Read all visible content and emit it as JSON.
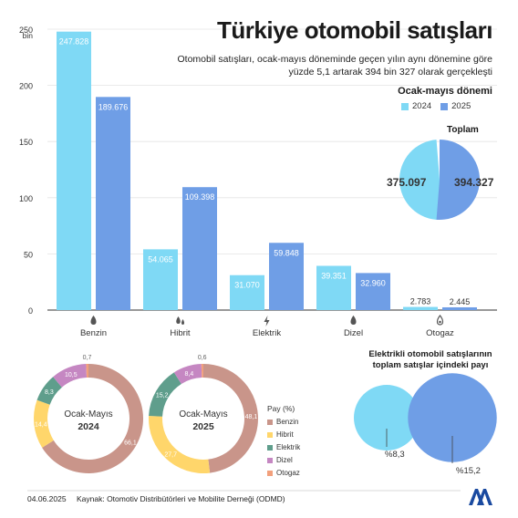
{
  "header": {
    "title": "Türkiye otomobil satışları",
    "subtitle_line1": "Otomobil satışları, ocak-mayıs döneminde geçen yılın aynı dönemine göre",
    "subtitle_line2": "yüzde 5,1 artarak 394 bin 327 olarak gerçekleşti",
    "period_label": "Ocak-mayıs dönemi"
  },
  "legend": {
    "series_2024": "2024",
    "series_2025": "2025"
  },
  "colors": {
    "c2024": "#7fd9f5",
    "c2025": "#6f9ee6",
    "benzin": "#c9958a",
    "hibrit": "#ffd66b",
    "elektrik": "#5f9e8c",
    "dizel": "#c587c2",
    "otogaz": "#f2a07c",
    "text": "#1a1a1a"
  },
  "totals": {
    "label": "Toplam",
    "v2024": "375.097",
    "v2025": "394.327"
  },
  "ev_share": {
    "title_line1": "Elektrikli otomobil satışlarının",
    "title_line2": "toplam satışlar içindeki payı",
    "v2024": "%8,3",
    "v2025": "%15,2"
  },
  "donuts": {
    "label_2024_line1": "Ocak-Mayıs",
    "label_2024_line2": "2024",
    "label_2025_line1": "Ocak-Mayıs",
    "label_2025_line2": "2025",
    "pay_title": "Pay (%)",
    "items": [
      "Benzin",
      "Hibrit",
      "Elektrik",
      "Dizel",
      "Otogaz"
    ]
  },
  "footer": {
    "date": "04.06.2025",
    "source": "Kaynak: Otomotiv Distribütörleri ve Mobilite Derneği (ODMD)"
  },
  "chart_data": [
    {
      "type": "bar",
      "y_unit": "bin",
      "ylim": [
        0,
        250
      ],
      "yticks": [
        "0",
        "50",
        "100",
        "150",
        "200",
        "250"
      ],
      "categories": [
        "Benzin",
        "Hibrit",
        "Elektrik",
        "Dizel",
        "Otogaz"
      ],
      "icons": [
        "fuel-drop-icon",
        "hybrid-drops-icon",
        "lightning-icon",
        "fuel-drop-icon",
        "gas-drop-icon"
      ],
      "series": [
        {
          "name": "2024",
          "values": [
            247.828,
            54.065,
            31.07,
            39.351,
            2.783
          ],
          "labels": [
            "247.828",
            "54.065",
            "31.070",
            "39.351",
            "2.783"
          ]
        },
        {
          "name": "2025",
          "values": [
            189.676,
            109.398,
            59.848,
            32.96,
            2.445
          ],
          "labels": [
            "189.676",
            "109.398",
            "59.848",
            "32.960",
            "2.445"
          ]
        }
      ]
    },
    {
      "type": "pie",
      "title": "Toplam",
      "categories": [
        "2024",
        "2025"
      ],
      "values": [
        375.097,
        394.327
      ],
      "labels": [
        "375.097",
        "394.327"
      ]
    },
    {
      "type": "pie",
      "subtype": "donut",
      "title": "Ocak-Mayıs 2024",
      "categories": [
        "Benzin",
        "Hibrit",
        "Elektrik",
        "Dizel",
        "Otogaz"
      ],
      "values": [
        66.1,
        14.4,
        8.3,
        10.5,
        0.7
      ],
      "labels": [
        "66,1",
        "14,4",
        "8,3",
        "10,5",
        "0,7"
      ]
    },
    {
      "type": "pie",
      "subtype": "donut",
      "title": "Ocak-Mayıs 2025",
      "categories": [
        "Benzin",
        "Hibrit",
        "Elektrik",
        "Dizel",
        "Otogaz"
      ],
      "values": [
        48.1,
        27.7,
        15.2,
        8.4,
        0.6
      ],
      "labels": [
        "48,1",
        "27,7",
        "15,2",
        "8,4",
        "0,6"
      ]
    }
  ]
}
